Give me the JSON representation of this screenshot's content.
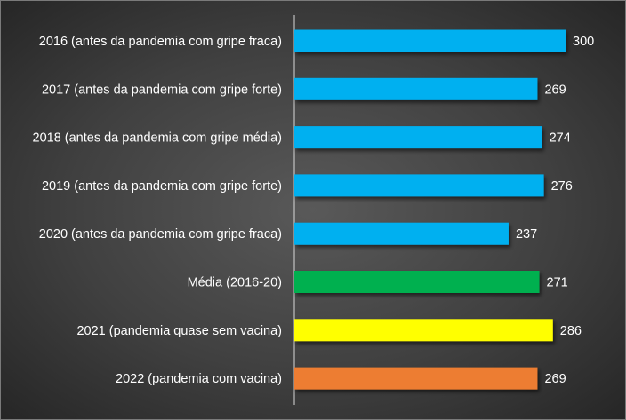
{
  "chart_data": {
    "type": "bar",
    "orientation": "horizontal",
    "categories": [
      "2016 (antes da pandemia com gripe fraca)",
      "2017 (antes da pandemia com gripe forte)",
      "2018 (antes da pandemia com gripe média)",
      "2019 (antes da pandemia com gripe forte)",
      "2020 (antes da pandemia com gripe fraca)",
      "Média (2016-20)",
      "2021 (pandemia quase sem vacina)",
      "2022 (pandemia com vacina)"
    ],
    "values": [
      300,
      269,
      274,
      276,
      237,
      271,
      286,
      269
    ],
    "bar_colors": [
      "#00b0f0",
      "#00b0f0",
      "#00b0f0",
      "#00b0f0",
      "#00b0f0",
      "#00b050",
      "#ffff00",
      "#ed7d31"
    ],
    "xlim": [
      0,
      300
    ],
    "data_labels": true,
    "grid": false,
    "legend": "none"
  }
}
